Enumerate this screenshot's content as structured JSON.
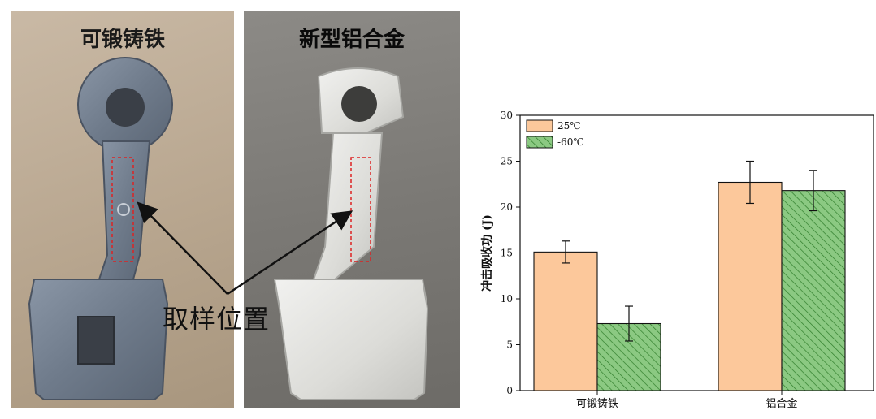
{
  "photos": {
    "left_title": "可锻铸铁",
    "right_title": "新型铝合金",
    "callout": "取样位置"
  },
  "colors": {
    "series_25": "#fcc89b",
    "series_m60": "#8bc982",
    "hatch": "#2f7d2a"
  },
  "chart_data": {
    "type": "bar",
    "categories": [
      "可锻铸铁",
      "铝合金"
    ],
    "series": [
      {
        "name": "25℃",
        "values": [
          15.1,
          22.7
        ],
        "errors": [
          1.2,
          2.3
        ]
      },
      {
        "name": "-60℃",
        "values": [
          7.3,
          21.8
        ],
        "errors": [
          1.9,
          2.2
        ]
      }
    ],
    "ylabel": "冲击吸收功 (J)",
    "ylim": [
      0,
      30
    ],
    "yticks": [
      0,
      5,
      10,
      15,
      20,
      25,
      30
    ],
    "legend": "top-left"
  }
}
